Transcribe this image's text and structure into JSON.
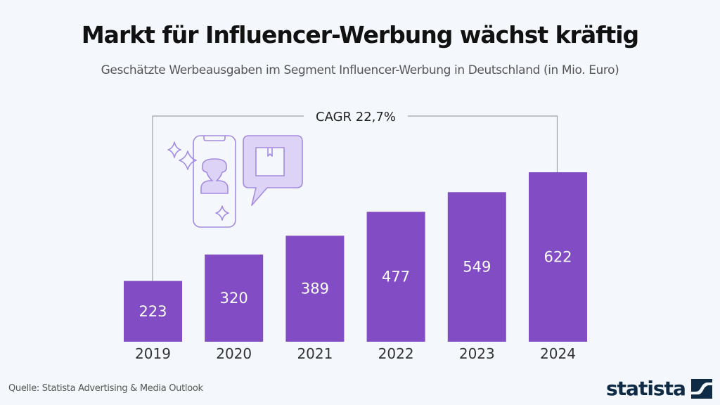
{
  "header": {
    "title": "Markt für Influencer-Werbung wächst kräftig",
    "subtitle": "Geschätzte Werbeausgaben im Segment Influencer-Werbung in Deutschland (in Mio. Euro)"
  },
  "footer": {
    "source": "Quelle: Statista Advertising & Media Outlook",
    "logo_text": "statista",
    "logo_icon": "statista-logo-icon"
  },
  "colors": {
    "bar": "#824dc4",
    "bar_label": "#ffffff",
    "illustration": "#a48be0",
    "illustration_fill": "#ddd3f6",
    "bracket": "#a3a3a3"
  },
  "illustration": {
    "description": "smartphone with influencer avatar, sparkles, speech bubble with package",
    "icons": [
      "sparkle-icon",
      "smartphone-icon",
      "person-icon",
      "speech-bubble-icon",
      "package-icon"
    ]
  },
  "chart_data": {
    "type": "bar",
    "title": "Markt für Influencer-Werbung wächst kräftig",
    "subtitle": "Geschätzte Werbeausgaben im Segment Influencer-Werbung in Deutschland (in Mio. Euro)",
    "categories": [
      "2019",
      "2020",
      "2021",
      "2022",
      "2023",
      "2024"
    ],
    "values": [
      223,
      320,
      389,
      477,
      549,
      622
    ],
    "data_labels": [
      "223",
      "320",
      "389",
      "477",
      "549",
      "622"
    ],
    "unit": "Mio. Euro",
    "xlabel": "",
    "ylabel": "",
    "ylim": [
      0,
      622
    ],
    "grid": false,
    "legend": "none",
    "annotation": {
      "text": "CAGR 22,7%",
      "from": "2019",
      "to": "2024"
    }
  }
}
